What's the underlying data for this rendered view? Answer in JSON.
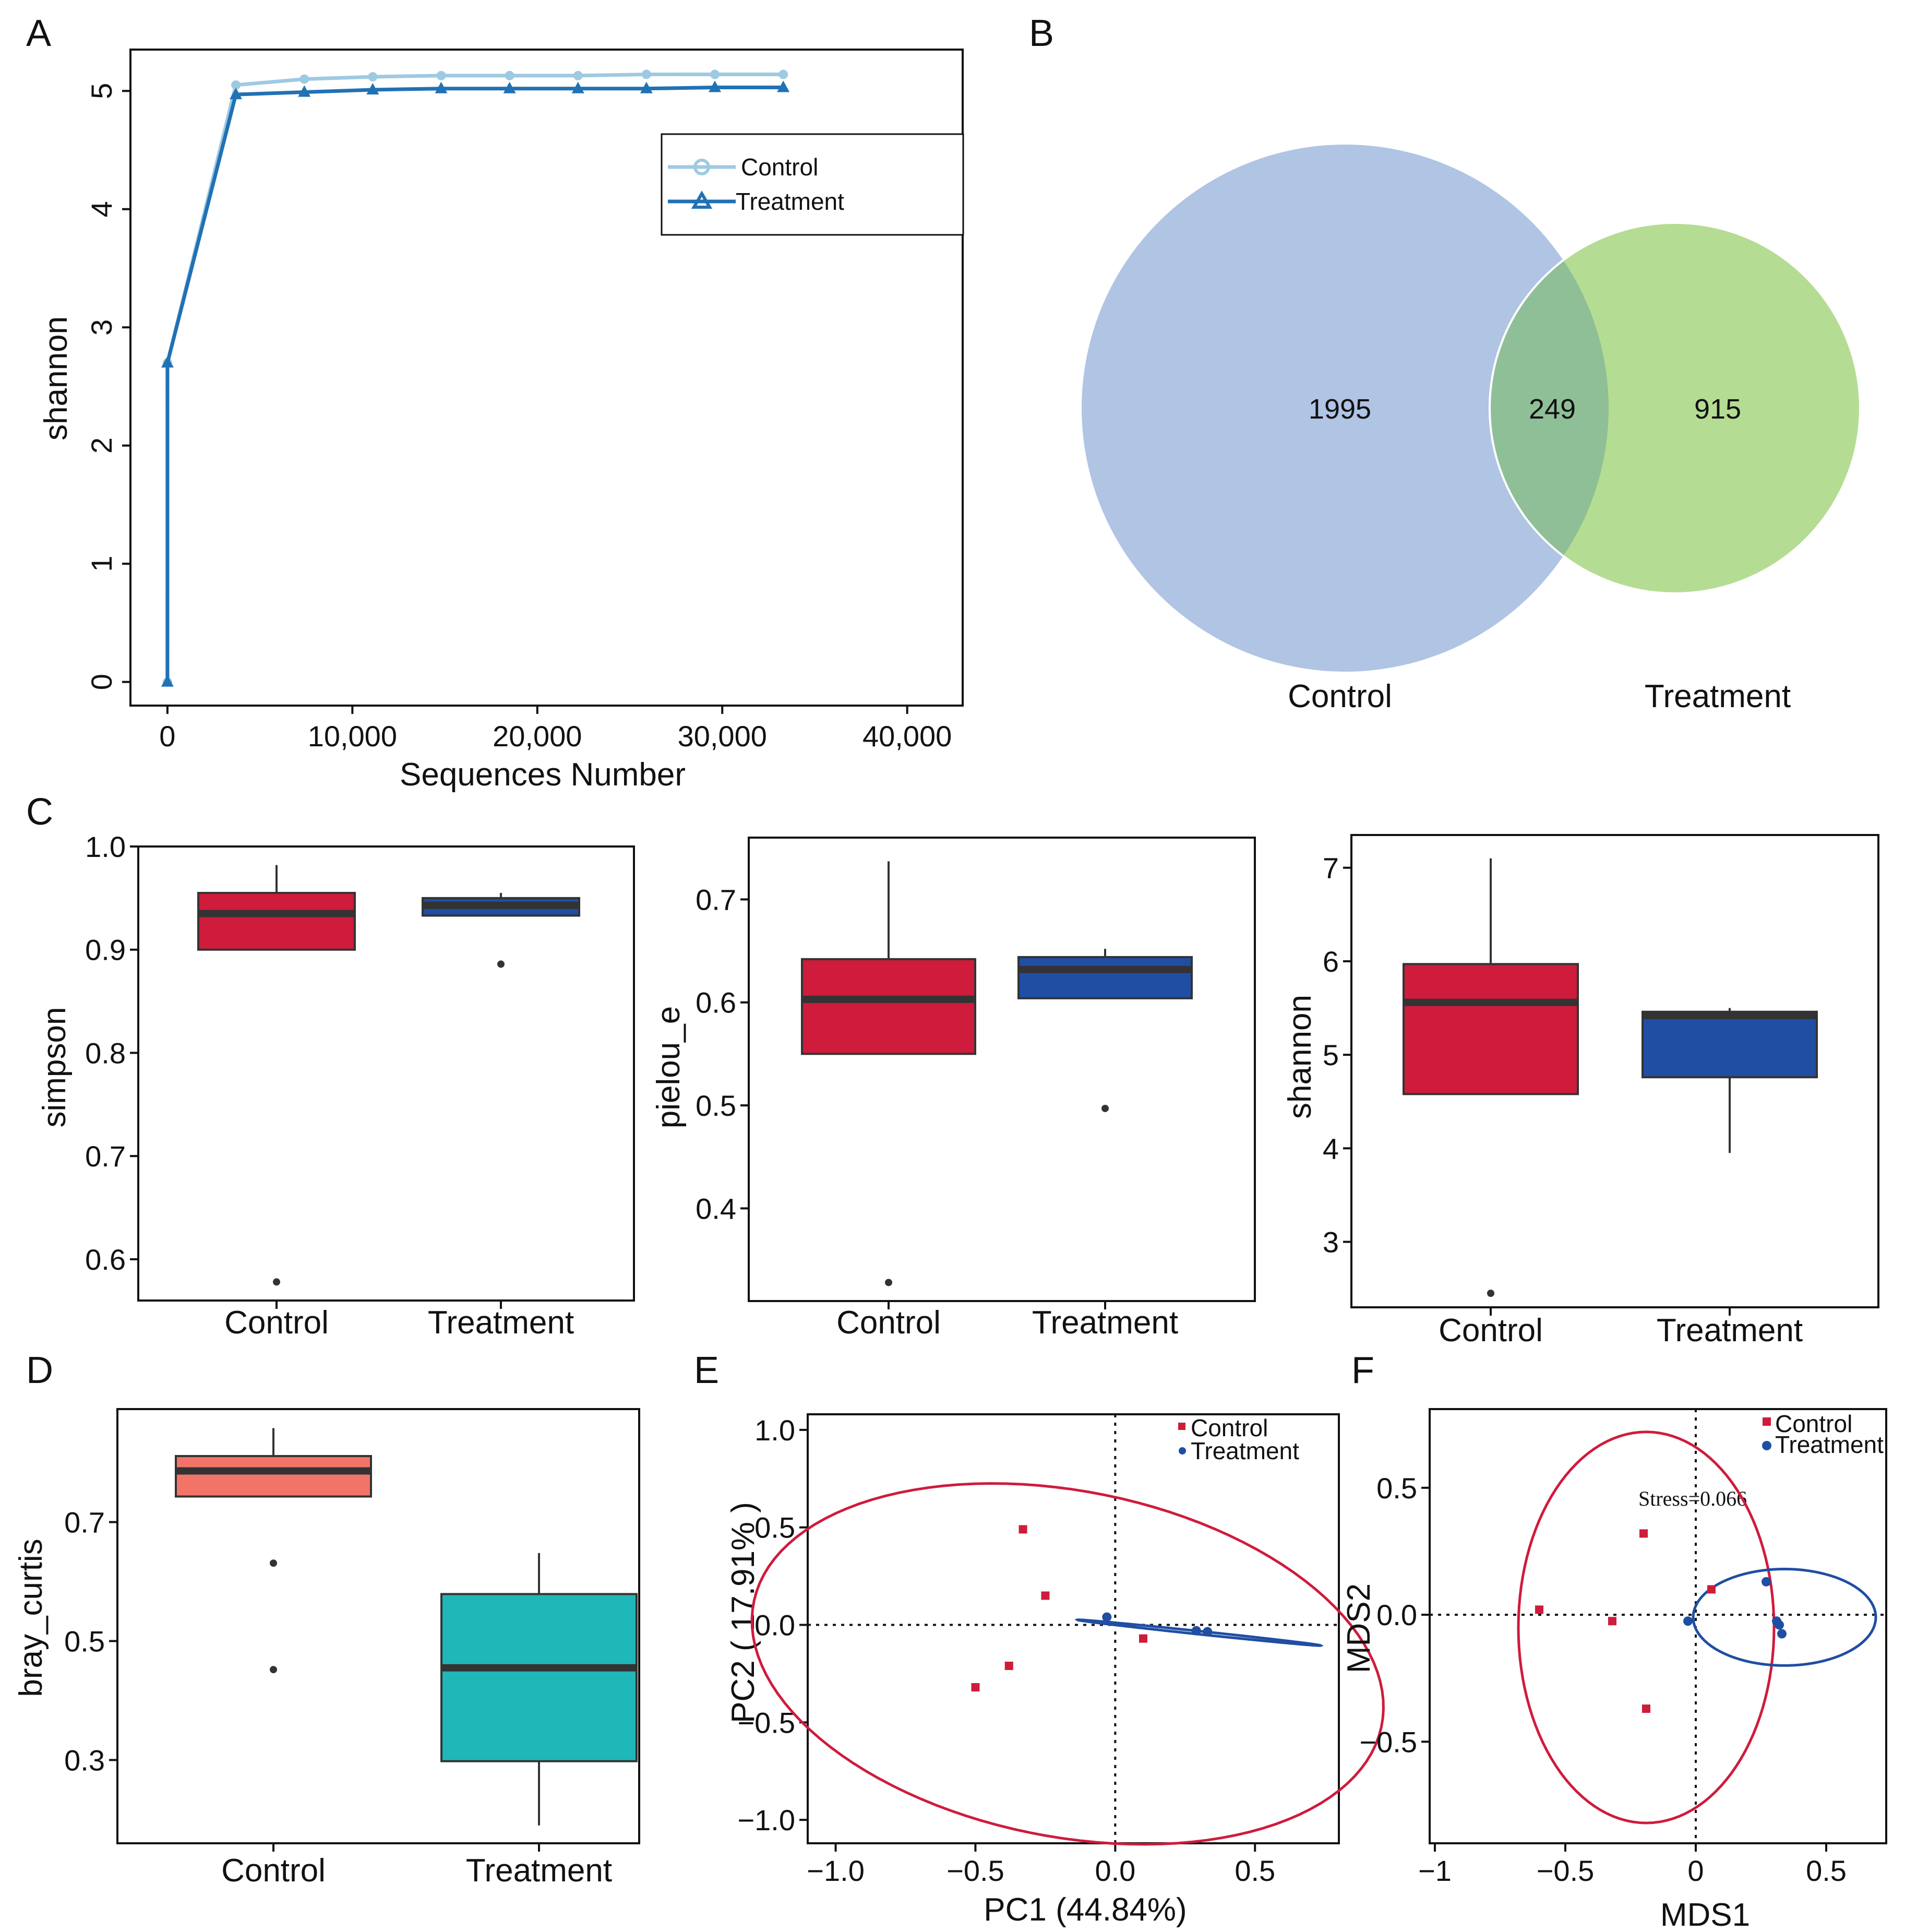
{
  "colors": {
    "control_line": "#9ecae1",
    "treatment_line": "#2171b5",
    "venn_control": "#b0c4e4",
    "venn_treatment": "#b5dc93",
    "venn_overlap": "#8fbf96",
    "box_red": "#cf1b3c",
    "box_blue": "#1f4ea3",
    "box_salmon": "#f27468",
    "box_teal": "#1fb7b7",
    "ellipse_red": "#cf1b3c",
    "ellipse_blue": "#1f4ea3",
    "median": "#333333"
  },
  "panels": {
    "A": "A",
    "B": "B",
    "C": "C",
    "D": "D",
    "E": "E",
    "F": "F"
  },
  "chart_data": [
    {
      "id": "A",
      "type": "line",
      "title": "",
      "xlabel": "Sequences Number",
      "ylabel": "shannon",
      "xlim": [
        -2000,
        43000
      ],
      "ylim": [
        -0.2,
        5.35
      ],
      "xticks": [
        0,
        10000,
        20000,
        30000,
        40000
      ],
      "xtick_labels": [
        "0",
        "10,000",
        "20,000",
        "30,000",
        "40,000"
      ],
      "yticks": [
        0,
        1,
        2,
        3,
        4,
        5
      ],
      "ytick_labels": [
        "0",
        "1",
        "2",
        "3",
        "4",
        "5"
      ],
      "x": [
        0,
        1,
        3700,
        7400,
        11100,
        14800,
        18500,
        22200,
        25900,
        29600,
        33300
      ],
      "series": [
        {
          "name": "Control",
          "marker": "circle",
          "values": [
            0,
            2.7,
            5.05,
            5.1,
            5.12,
            5.13,
            5.13,
            5.13,
            5.14,
            5.14,
            5.14
          ]
        },
        {
          "name": "Treatment",
          "marker": "triangle",
          "values": [
            0,
            2.7,
            4.97,
            4.99,
            5.01,
            5.02,
            5.02,
            5.02,
            5.02,
            5.03,
            5.03
          ]
        }
      ],
      "legend": [
        "Control",
        "Treatment"
      ],
      "legend_position": "top-right"
    },
    {
      "id": "B",
      "type": "venn",
      "sets": [
        "Control",
        "Treatment"
      ],
      "values": {
        "control_only": "1995",
        "shared": "249",
        "treatment_only": "915"
      }
    },
    {
      "id": "C1",
      "type": "box",
      "ylabel": "simpson",
      "ylim": [
        0.56,
        1.0
      ],
      "yticks": [
        0.6,
        0.7,
        0.8,
        0.9,
        1.0
      ],
      "ytick_labels": [
        "0.6",
        "0.7",
        "0.8",
        "0.9",
        "1.0"
      ],
      "categories": [
        "Control",
        "Treatment"
      ],
      "boxes": [
        {
          "category": "Control",
          "q1": 0.9,
          "median": 0.935,
          "q3": 0.955,
          "whisker_low": 0.9,
          "whisker_high": 0.982,
          "outliers": [
            0.578
          ],
          "color": "red"
        },
        {
          "category": "Treatment",
          "q1": 0.933,
          "median": 0.943,
          "q3": 0.95,
          "whisker_low": 0.933,
          "whisker_high": 0.955,
          "outliers": [
            0.886
          ],
          "color": "blue"
        }
      ]
    },
    {
      "id": "C2",
      "type": "box",
      "ylabel": "pielou_e",
      "ylim": [
        0.31,
        0.76
      ],
      "yticks": [
        0.4,
        0.5,
        0.6,
        0.7
      ],
      "ytick_labels": [
        "0.4",
        "0.5",
        "0.6",
        "0.7"
      ],
      "categories": [
        "Control",
        "Treatment"
      ],
      "boxes": [
        {
          "category": "Control",
          "q1": 0.55,
          "median": 0.603,
          "q3": 0.642,
          "whisker_low": 0.55,
          "whisker_high": 0.737,
          "outliers": [
            0.328
          ],
          "color": "red"
        },
        {
          "category": "Treatment",
          "q1": 0.604,
          "median": 0.632,
          "q3": 0.644,
          "whisker_low": 0.604,
          "whisker_high": 0.652,
          "outliers": [
            0.497
          ],
          "color": "blue"
        }
      ]
    },
    {
      "id": "C3",
      "type": "box",
      "ylabel": "shannon",
      "ylim": [
        2.3,
        7.35
      ],
      "yticks": [
        3,
        4,
        5,
        6,
        7
      ],
      "ytick_labels": [
        "3",
        "4",
        "5",
        "6",
        "7"
      ],
      "categories": [
        "Control",
        "Treatment"
      ],
      "boxes": [
        {
          "category": "Control",
          "q1": 4.58,
          "median": 5.56,
          "q3": 5.97,
          "whisker_low": 4.58,
          "whisker_high": 7.1,
          "outliers": [
            2.45
          ],
          "color": "red"
        },
        {
          "category": "Treatment",
          "q1": 4.76,
          "median": 5.42,
          "q3": 5.46,
          "whisker_low": 3.95,
          "whisker_high": 5.5,
          "outliers": [],
          "color": "blue"
        }
      ]
    },
    {
      "id": "D",
      "type": "box",
      "ylabel": "bray_curtis",
      "ylim": [
        0.16,
        0.89
      ],
      "yticks": [
        0.3,
        0.5,
        0.7
      ],
      "ytick_labels": [
        "0.3",
        "0.5",
        "0.7"
      ],
      "categories": [
        "Control",
        "Treatment"
      ],
      "boxes": [
        {
          "category": "Control",
          "q1": 0.743,
          "median": 0.786,
          "q3": 0.811,
          "whisker_low": 0.743,
          "whisker_high": 0.858,
          "outliers": [
            0.631,
            0.452
          ],
          "color": "salmon"
        },
        {
          "category": "Treatment",
          "q1": 0.298,
          "median": 0.455,
          "q3": 0.579,
          "whisker_low": 0.19,
          "whisker_high": 0.648,
          "outliers": [],
          "color": "teal"
        }
      ]
    },
    {
      "id": "E",
      "type": "scatter",
      "xlabel": "PC1 (44.84%)",
      "ylabel": "PC2 ( 17.91% )",
      "xlim": [
        -1.1,
        0.8
      ],
      "ylim": [
        -1.12,
        1.08
      ],
      "xticks": [
        -1.0,
        -0.5,
        0.0,
        0.5
      ],
      "xtick_labels": [
        "−1.0",
        "−0.5",
        "0.0",
        "0.5"
      ],
      "yticks": [
        -1.0,
        -0.5,
        0.0,
        0.5,
        1.0
      ],
      "ytick_labels": [
        "−1.0",
        "−0.5",
        "0.0",
        "0.5",
        "1.0"
      ],
      "series": [
        {
          "name": "Control",
          "marker": "square",
          "points": [
            [
              -0.33,
              0.49
            ],
            [
              -0.25,
              0.15
            ],
            [
              -0.38,
              -0.21
            ],
            [
              -0.5,
              -0.32
            ],
            [
              0.1,
              -0.07
            ]
          ]
        },
        {
          "name": "Treatment",
          "marker": "circle",
          "points": [
            [
              -0.03,
              0.04
            ],
            [
              0.29,
              -0.03
            ],
            [
              0.33,
              -0.035
            ]
          ]
        }
      ],
      "ellipses": [
        {
          "group": "Control",
          "cx": -0.17,
          "cy": -0.2,
          "rx": 0.86,
          "ry": 1.18,
          "angle_deg": 65
        },
        {
          "group": "Treatment",
          "cx": 0.3,
          "cy": -0.04,
          "rx": 0.44,
          "ry": 0.008,
          "angle_deg": -8.6
        }
      ],
      "legend": [
        "Control",
        "Treatment"
      ],
      "legend_position": "top-right"
    },
    {
      "id": "F",
      "type": "scatter",
      "xlabel": "MDS1",
      "ylabel": "MDS2",
      "xlim": [
        -1.02,
        0.73
      ],
      "ylim": [
        -0.9,
        0.81
      ],
      "xticks": [
        -1.0,
        -0.5,
        0.0,
        0.5
      ],
      "xtick_labels": [
        "−1",
        "−0.5",
        "0",
        "0.5"
      ],
      "yticks": [
        -0.5,
        0.0,
        0.5
      ],
      "ytick_labels": [
        "−0.5",
        "0.0",
        "0.5"
      ],
      "annotation": "Stress=0.066",
      "series": [
        {
          "name": "Control",
          "marker": "square",
          "points": [
            [
              -0.2,
              0.32
            ],
            [
              -0.6,
              0.02
            ],
            [
              -0.32,
              -0.025
            ],
            [
              0.06,
              0.1
            ],
            [
              -0.19,
              -0.37
            ]
          ]
        },
        {
          "name": "Treatment",
          "marker": "circle",
          "points": [
            [
              -0.03,
              -0.025
            ],
            [
              0.27,
              0.13
            ],
            [
              0.31,
              -0.025
            ],
            [
              0.32,
              -0.04
            ],
            [
              0.33,
              -0.075
            ]
          ]
        }
      ],
      "ellipses": [
        {
          "group": "Control",
          "cx": -0.19,
          "cy": -0.05,
          "rx": 0.49,
          "ry": 0.77,
          "angle_deg": 0
        },
        {
          "group": "Treatment",
          "cx": 0.34,
          "cy": -0.01,
          "rx": 0.35,
          "ry": 0.19,
          "angle_deg": 0
        }
      ],
      "legend": [
        "Control",
        "Treatment"
      ],
      "legend_position": "top-right"
    }
  ]
}
